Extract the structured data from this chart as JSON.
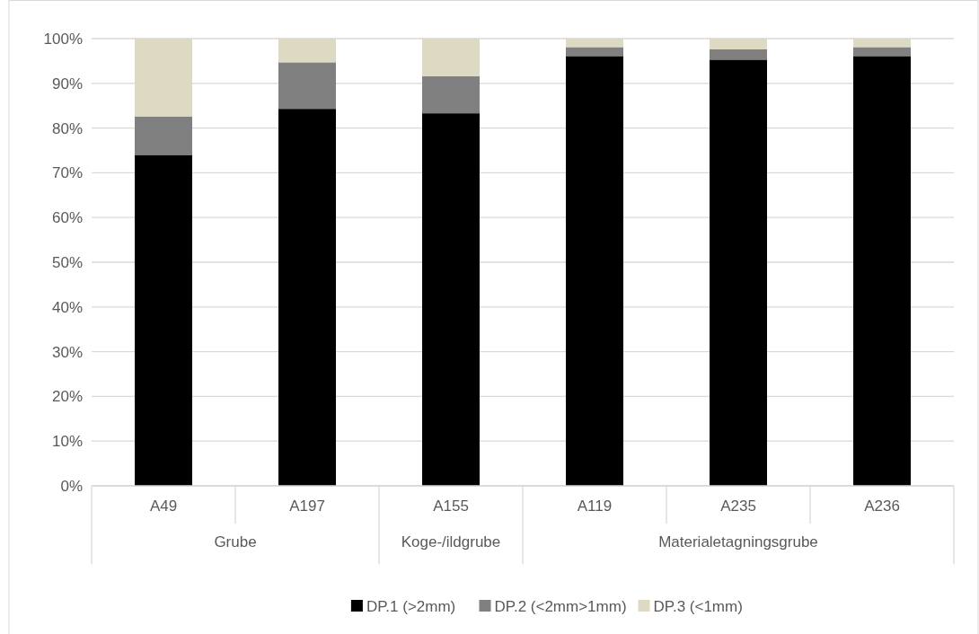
{
  "chart_data": {
    "type": "bar",
    "stacked": true,
    "categories": [
      "A49",
      "A197",
      "A155",
      "A119",
      "A235",
      "A236"
    ],
    "series": [
      {
        "name": "DP.1 (>2mm)",
        "color": "#000000",
        "values": [
          74.0,
          84.3,
          83.3,
          96.1,
          95.3,
          96.1
        ]
      },
      {
        "name": "DP.2 (<2mm>1mm)",
        "color": "#808080",
        "values": [
          8.6,
          10.4,
          8.3,
          2.0,
          2.3,
          2.0
        ]
      },
      {
        "name": "DP.3 (<1mm)",
        "color": "#ddd9c3",
        "values": [
          17.4,
          5.3,
          8.4,
          1.9,
          2.4,
          1.9
        ]
      }
    ],
    "ylim": [
      0,
      100
    ],
    "yticks": [
      {
        "value": 0,
        "label": "0%"
      },
      {
        "value": 10,
        "label": "10%"
      },
      {
        "value": 20,
        "label": "20%"
      },
      {
        "value": 30,
        "label": "30%"
      },
      {
        "value": 40,
        "label": "40%"
      },
      {
        "value": 50,
        "label": "50%"
      },
      {
        "value": 60,
        "label": "60%"
      },
      {
        "value": 70,
        "label": "70%"
      },
      {
        "value": 80,
        "label": "80%"
      },
      {
        "value": 90,
        "label": "90%"
      },
      {
        "value": 100,
        "label": "100%"
      }
    ],
    "grid": "y",
    "legend": "bottom",
    "annotations": [
      "Grube",
      "Koge-/ildgrube",
      "Materialetagningsgrube"
    ]
  }
}
